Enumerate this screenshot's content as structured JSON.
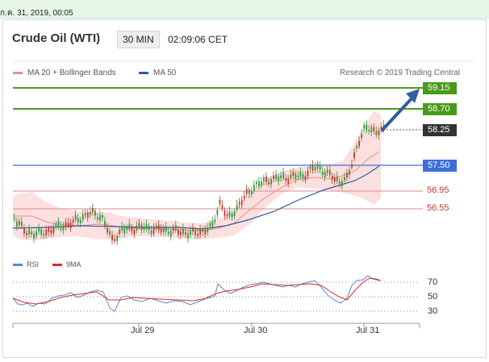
{
  "topbar": {
    "date_text": "ก.ค. 31, 2019, 00:05"
  },
  "header": {
    "title": "Crude Oil (WTI)",
    "timeframe": "30 MIN",
    "time": "02:09:06 CET"
  },
  "legend": {
    "bb_label": "MA 20 + Bollinger Bands",
    "bb_color": "#f08a8a",
    "ma50_label": "MA 50",
    "ma50_color": "#2f5d9b",
    "credit": "Research © 2019 Trading Central"
  },
  "levels": {
    "r2": {
      "label": "59.15",
      "color": "#4a9a1a"
    },
    "r1": {
      "label": "58.70",
      "color": "#4a9a1a"
    },
    "last": {
      "label": "58.25",
      "color": "#333333"
    },
    "pivot": {
      "label": "57.50",
      "color": "#3d6fd9"
    },
    "s1": {
      "label": "56.95",
      "color": "#c0392b"
    },
    "s2": {
      "label": "56.55",
      "color": "#c0392b"
    }
  },
  "rsi": {
    "rsi_label": "RSI",
    "rsi_color": "#5b86d6",
    "ma_label": "9MA",
    "ma_color": "#d62b2b",
    "ticks": [
      "70",
      "50",
      "30"
    ]
  },
  "xaxis": {
    "ticks": [
      "Jul 29",
      "Jul 30",
      "Jul 31"
    ]
  },
  "colors": {
    "bull": "#2e9a3e",
    "bear": "#c0392b",
    "band": "#fbd9d9"
  }
}
